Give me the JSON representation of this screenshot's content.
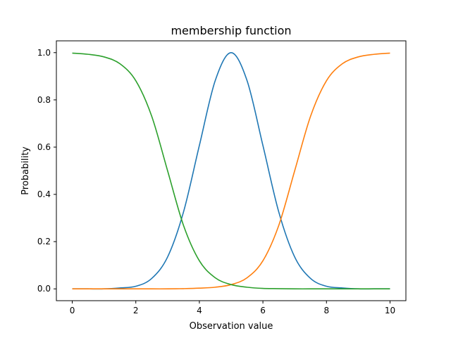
{
  "chart_data": {
    "type": "line",
    "title": "membership function",
    "xlabel": "Observation value",
    "ylabel": "Probability",
    "xlim": [
      -0.5,
      10.5
    ],
    "ylim": [
      -0.05,
      1.05
    ],
    "xticks": [
      0,
      2,
      4,
      6,
      8,
      10
    ],
    "yticks": [
      0.0,
      0.2,
      0.4,
      0.6,
      0.8,
      1.0
    ],
    "xtick_labels": [
      "0",
      "2",
      "4",
      "6",
      "8",
      "10"
    ],
    "ytick_labels": [
      "0.0",
      "0.2",
      "0.4",
      "0.6",
      "0.8",
      "1.0"
    ],
    "grid": false,
    "legend": "none",
    "x": [
      0,
      0.5,
      1,
      1.5,
      2,
      2.5,
      3,
      3.5,
      4,
      4.5,
      5,
      5.5,
      6,
      6.5,
      7,
      7.5,
      8,
      8.5,
      9,
      9.5,
      10
    ],
    "series": [
      {
        "color": "#1f77b4",
        "values": [
          0.0,
          0.0,
          0.0,
          0.004,
          0.011,
          0.044,
          0.135,
          0.325,
          0.607,
          0.882,
          1.0,
          0.882,
          0.607,
          0.325,
          0.135,
          0.044,
          0.011,
          0.004,
          0.0,
          0.0,
          0.0
        ]
      },
      {
        "color": "#ff7f0e",
        "values": [
          0.0,
          0.0,
          0.0,
          0.0,
          0.0,
          0.0,
          0.0,
          0.001,
          0.003,
          0.007,
          0.018,
          0.047,
          0.119,
          0.269,
          0.5,
          0.731,
          0.881,
          0.953,
          0.982,
          0.993,
          0.998
        ]
      },
      {
        "color": "#2ca02c",
        "values": [
          0.998,
          0.993,
          0.982,
          0.953,
          0.881,
          0.731,
          0.5,
          0.269,
          0.119,
          0.047,
          0.018,
          0.007,
          0.002,
          0.001,
          0.0,
          0.0,
          0.0,
          0.0,
          0.0,
          0.0,
          0.0
        ]
      }
    ]
  }
}
